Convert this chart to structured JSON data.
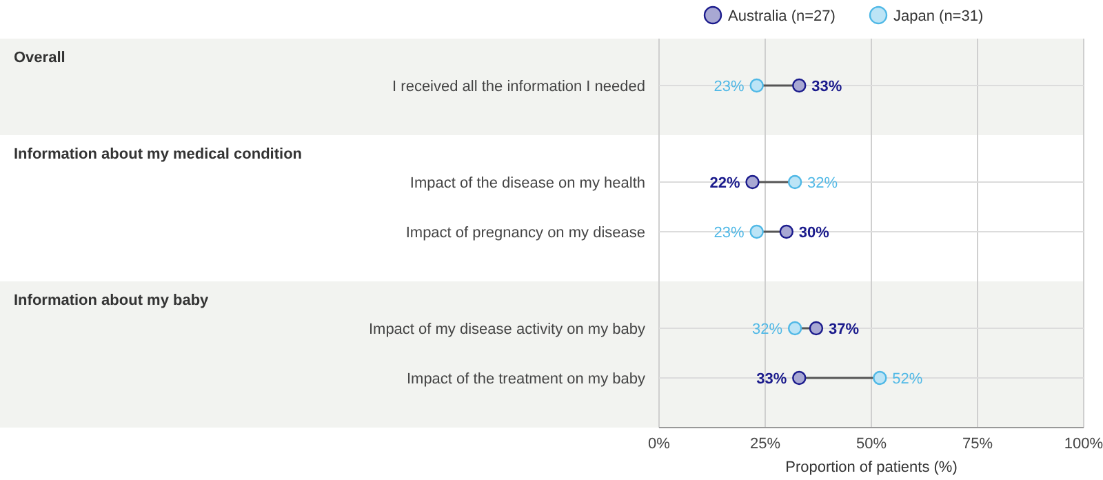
{
  "chart_data": {
    "type": "scatter",
    "orientation": "horizontal",
    "xlabel": "Proportion of patients (%)",
    "categories": [
      "I received all the information I needed",
      "Impact of the disease on my health",
      "Impact of pregnancy on my disease",
      "Impact of my disease activity on my baby",
      "Impact of the treatment on my baby"
    ],
    "series": [
      {
        "name": "Australia (n=27)",
        "color": "#1a1a8c",
        "values": [
          33,
          22,
          30,
          37,
          33
        ],
        "value_labels": [
          "33%",
          "22%",
          "30%",
          "37%",
          "33%"
        ]
      },
      {
        "name": "Japan (n=31)",
        "color": "#4fb8e6",
        "values": [
          23,
          32,
          23,
          32,
          52
        ],
        "value_labels": [
          "23%",
          "32%",
          "23%",
          "32%",
          "52%"
        ]
      }
    ],
    "xlim": [
      0,
      100
    ],
    "xticks": [
      {
        "value": 0,
        "label": "0%"
      },
      {
        "value": 25,
        "label": "25%"
      },
      {
        "value": 50,
        "label": "50%"
      },
      {
        "value": 75,
        "label": "75%"
      },
      {
        "value": 100,
        "label": "100%"
      }
    ],
    "grid": true,
    "legend": "top",
    "marker": "circle",
    "annotations": [
      "Overall",
      "Information about my medical condition",
      "Information about my baby"
    ]
  }
}
